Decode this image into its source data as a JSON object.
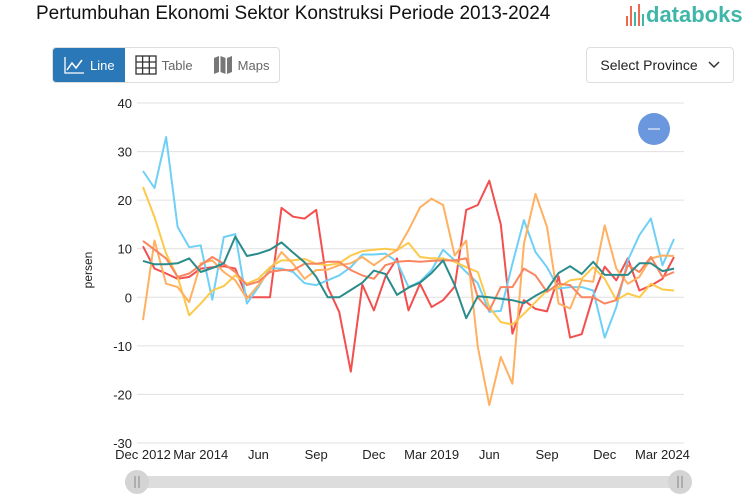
{
  "header": {
    "title": "Pertumbuhan Ekonomi Sektor Konstruksi Periode 2013-2024",
    "logo": "databoks"
  },
  "view_tabs": [
    {
      "label": "Line",
      "icon": "line-chart-icon",
      "active": true
    },
    {
      "label": "Table",
      "icon": "table-icon",
      "active": false
    },
    {
      "label": "Maps",
      "icon": "map-icon",
      "active": false
    }
  ],
  "province_select": {
    "label": "Select Province",
    "icon": "chevron-down-icon"
  },
  "colors": {
    "accent": "#2b78b8",
    "brand": "#3fb6a8",
    "reset_button": "#6a97dd"
  },
  "chart_data": {
    "type": "line",
    "ylabel": "persen",
    "ylim": [
      -30,
      40
    ],
    "yticks": [
      40,
      30,
      20,
      10,
      0,
      -10,
      -20,
      -30
    ],
    "grid": true,
    "legend": "none",
    "x_tick_labels": [
      {
        "index": 0,
        "label": "Dec 2012"
      },
      {
        "index": 5,
        "label": "Mar 2014"
      },
      {
        "index": 10,
        "label": "Jun"
      },
      {
        "index": 15,
        "label": "Sep"
      },
      {
        "index": 20,
        "label": "Dec"
      },
      {
        "index": 25,
        "label": "Mar 2019"
      },
      {
        "index": 30,
        "label": "Jun"
      },
      {
        "index": 35,
        "label": "Sep"
      },
      {
        "index": 40,
        "label": "Dec"
      },
      {
        "index": 45,
        "label": "Mar 2024"
      }
    ],
    "series": [
      {
        "color": "#f24f4f",
        "values": [
          10.5,
          5.9,
          4.9,
          3.8,
          4.2,
          5.9,
          6.2,
          6.4,
          5.9,
          0,
          0,
          0,
          18.4,
          16.6,
          16.2,
          18,
          2.1,
          -3,
          -15.3,
          2.6,
          -2.7,
          4.2,
          8,
          -2.7,
          2.8,
          -2,
          -0.6,
          2.2,
          18,
          19,
          24,
          15,
          -7.5,
          -0.6,
          -2.4,
          -2.9,
          4.3,
          -8.3,
          -7.6,
          0.3,
          6.3,
          3.5,
          8,
          1.4,
          2.4,
          3.8,
          8.3
        ]
      },
      {
        "color": "#6fd0f6",
        "values": [
          26,
          22.5,
          33,
          14.5,
          10.3,
          10.7,
          -0.5,
          12.4,
          13,
          -1.3,
          2.1,
          6,
          5.9,
          5.2,
          2.9,
          2.5,
          3.5,
          4.5,
          6.2,
          8.8,
          8.8,
          9,
          7.3,
          2.1,
          3.2,
          5.6,
          9.8,
          7.6,
          5.2,
          2.9,
          -3,
          -2.8,
          6.9,
          15.9,
          9.3,
          6.2,
          1.8,
          2.1,
          2.1,
          1.4,
          -8.3,
          -2,
          7.6,
          12.8,
          16.2,
          6.6,
          12
        ]
      },
      {
        "color": "#fcc94a",
        "values": [
          22.7,
          16.5,
          9,
          4.2,
          -3.7,
          -1.3,
          1.4,
          2.3,
          4.5,
          2.8,
          3.8,
          6.2,
          7.6,
          7.6,
          7.9,
          6.9,
          6.6,
          7,
          8.6,
          9.5,
          9.8,
          10,
          9.7,
          11.2,
          8.3,
          8,
          8,
          7.3,
          6.2,
          5.2,
          -2,
          -5.1,
          -5.6,
          -3.4,
          -1,
          1.4,
          2.1,
          3.5,
          3.8,
          6.2,
          3.8,
          -0.6,
          0.8,
          0,
          2.8,
          1.6,
          1.4
        ]
      },
      {
        "color": "#ffb060",
        "values": [
          -4.7,
          11.7,
          2.8,
          2.1,
          -1,
          7,
          7.6,
          5.2,
          3.5,
          -0.3,
          2.5,
          5.6,
          9.3,
          6.9,
          3.8,
          5.6,
          5.7,
          6.6,
          7,
          8.3,
          6.6,
          8.3,
          9.7,
          13.8,
          18.5,
          20.3,
          19,
          8.6,
          11.7,
          -10.2,
          -22.2,
          -12.3,
          -17.8,
          11,
          21.3,
          14.5,
          -1.3,
          -2.3,
          3.5,
          3.2,
          14.8,
          5.9,
          2.8,
          4.2,
          8,
          8.6,
          8.5
        ]
      },
      {
        "color": "#f98660",
        "values": [
          11.6,
          9.8,
          8,
          4.2,
          4.9,
          6.6,
          8.3,
          6.9,
          5.2,
          2.5,
          3.2,
          5.2,
          5.6,
          5.6,
          6.9,
          6.9,
          7.3,
          7.3,
          5.6,
          4.5,
          3.8,
          6.6,
          7.3,
          7.5,
          7.3,
          7.5,
          7.6,
          7.6,
          8,
          0,
          -2.7,
          2.1,
          2.1,
          5.9,
          4.5,
          1.1,
          2.8,
          2.5,
          0,
          0,
          -1.3,
          -0.6,
          6.6,
          5.2,
          8.3,
          4.2,
          5.2
        ]
      },
      {
        "color": "#2a8c8a",
        "values": [
          7.5,
          6.8,
          6.8,
          7,
          8,
          5.2,
          6,
          7,
          12.5,
          8.5,
          9,
          9.8,
          11.3,
          9.2,
          7.2,
          4.2,
          0,
          0,
          1.5,
          3,
          5.5,
          4.8,
          0.5,
          2,
          3,
          5,
          7.6,
          2.5,
          -4.3,
          0.2,
          0,
          -0.3,
          -0.6,
          -1.2,
          0.3,
          1.6,
          5,
          6.4,
          4.8,
          7.3,
          4.6,
          4.6,
          4.6,
          7,
          7,
          5.4,
          5.9
        ]
      }
    ]
  }
}
